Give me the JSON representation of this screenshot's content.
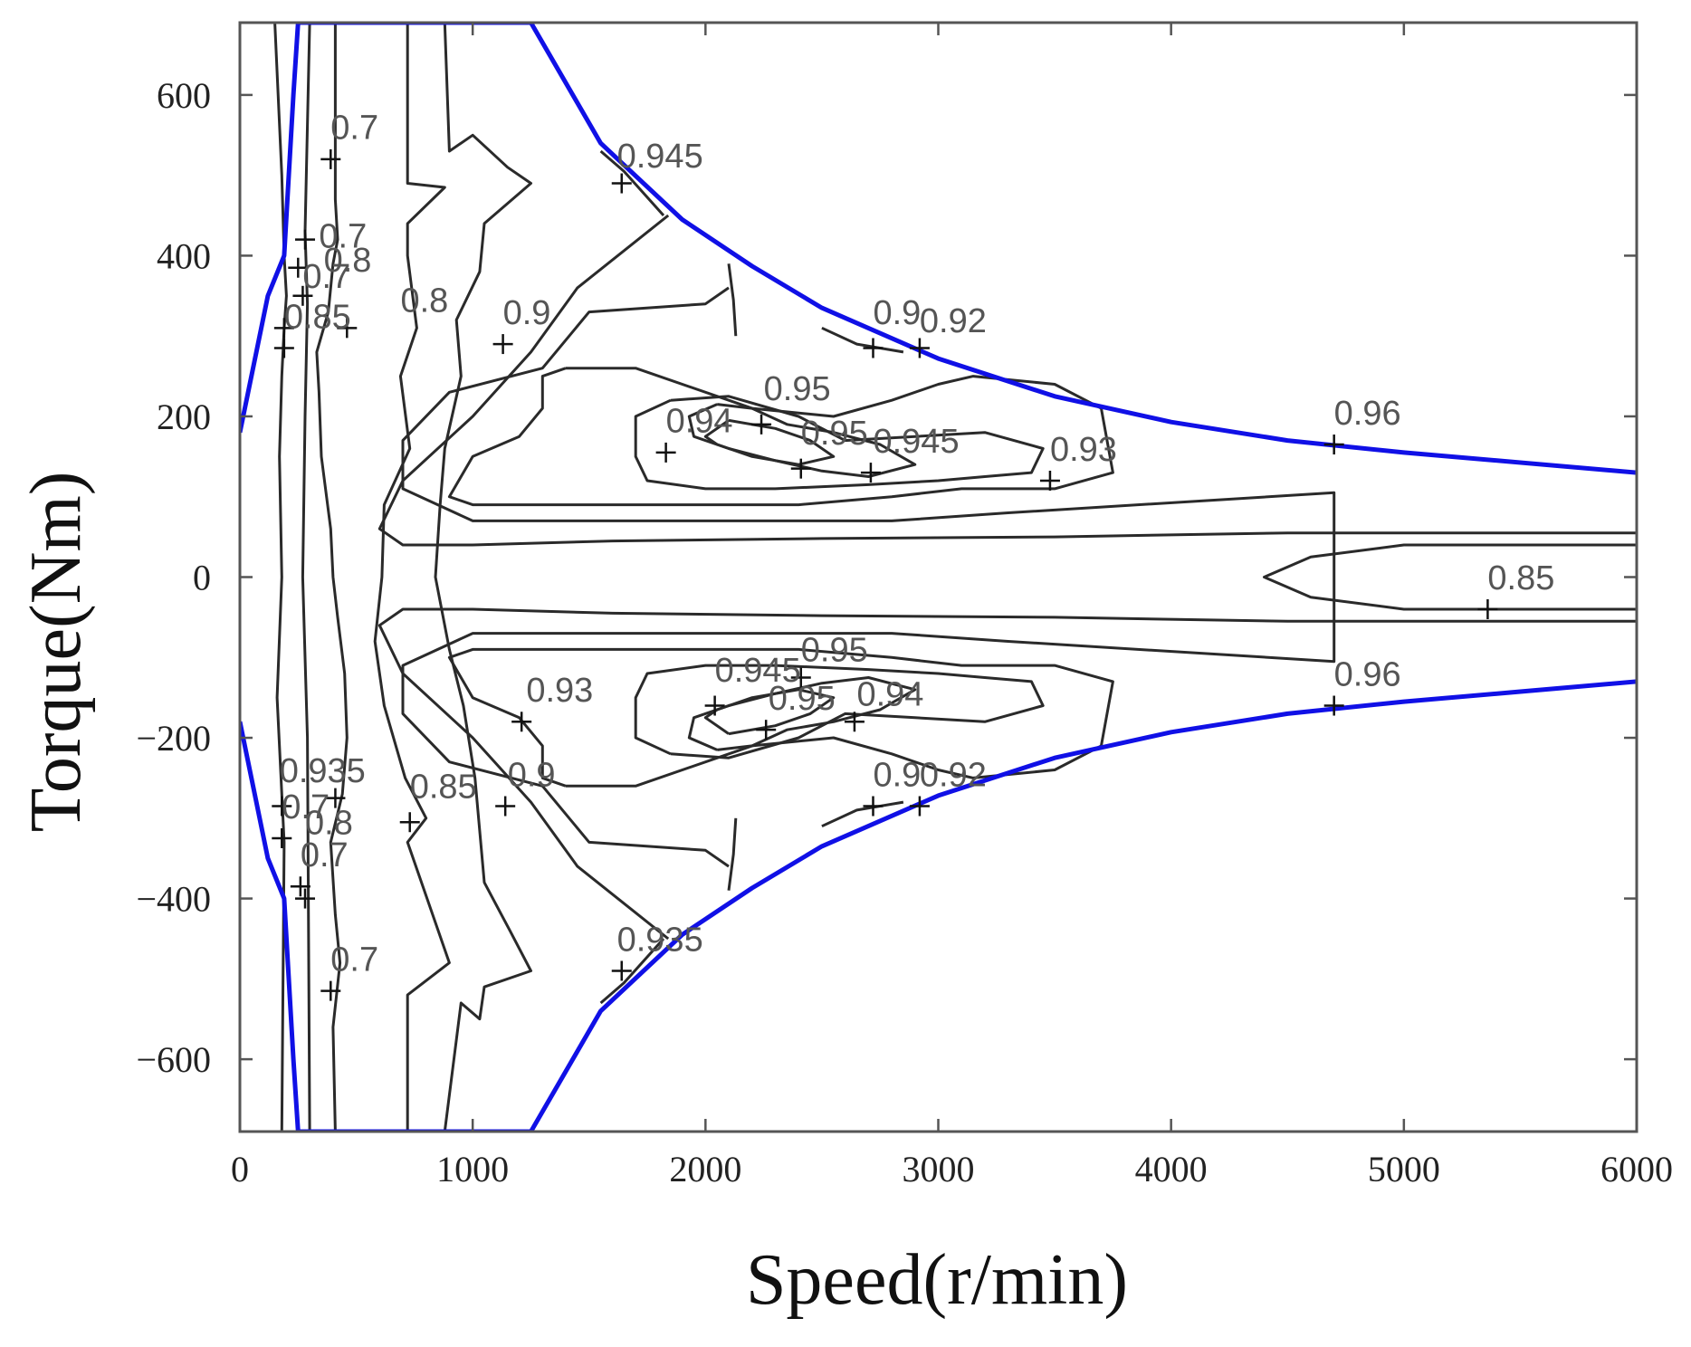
{
  "chart_data": {
    "type": "contour",
    "xlabel": "Speed(r/min)",
    "ylabel": "Torque(Nm)",
    "xlim": [
      0,
      6000
    ],
    "ylim": [
      -690,
      690
    ],
    "x_ticks": [
      0,
      1000,
      2000,
      3000,
      4000,
      5000,
      6000
    ],
    "y_ticks": [
      -600,
      -400,
      -200,
      0,
      200,
      400,
      600
    ],
    "x_tick_labels": [
      "0",
      "1000",
      "2000",
      "3000",
      "4000",
      "5000",
      "6000"
    ],
    "y_tick_labels": [
      "−600",
      "−400",
      "−200",
      "0",
      "200",
      "400",
      "600"
    ],
    "grid": false,
    "colors": {
      "envelope": "#1010e6",
      "contour": "#2a2a2a"
    },
    "envelope": [
      {
        "x": [
          0,
          120,
          190,
          230,
          250,
          1250,
          1550,
          1900,
          2200,
          2500,
          3000,
          3500,
          4000,
          4500,
          5000,
          6000
        ],
        "y": [
          180,
          350,
          400,
          600,
          690,
          690,
          540,
          445,
          387,
          335,
          272,
          225,
          193,
          170,
          155,
          130
        ]
      },
      {
        "x": [
          0,
          120,
          190,
          230,
          250,
          1250,
          1550,
          1900,
          2200,
          2500,
          3000,
          3500,
          4000,
          4500,
          5000,
          6000
        ],
        "y": [
          -180,
          -350,
          -400,
          -600,
          -690,
          -690,
          -540,
          -445,
          -387,
          -335,
          -272,
          -225,
          -193,
          -170,
          -155,
          -130
        ]
      }
    ],
    "contour_lines": [
      {
        "x": [
          150,
          180,
          190,
          200,
          190,
          180,
          170,
          180,
          160,
          190,
          180
        ],
        "y": [
          690,
          500,
          400,
          350,
          310,
          250,
          150,
          0,
          -150,
          -330,
          -690
        ]
      },
      {
        "x": [
          300,
          280,
          290,
          280,
          270,
          290,
          300
        ],
        "y": [
          690,
          430,
          340,
          200,
          0,
          -200,
          -690
        ]
      },
      {
        "x": [
          410,
          410,
          420,
          400,
          380,
          330,
          340,
          350,
          390,
          400,
          420,
          450,
          460,
          440,
          390,
          410,
          430,
          400,
          410
        ],
        "y": [
          690,
          470,
          420,
          390,
          330,
          280,
          230,
          150,
          60,
          0,
          -50,
          -120,
          -200,
          -270,
          -330,
          -420,
          -480,
          -560,
          -690
        ]
      },
      {
        "x": [
          720,
          720,
          880,
          720,
          720,
          760,
          690,
          730,
          620,
          610,
          580,
          620,
          710,
          800,
          720,
          900,
          720,
          720
        ],
        "y": [
          690,
          490,
          485,
          440,
          400,
          310,
          250,
          160,
          90,
          0,
          -80,
          -160,
          -250,
          -300,
          -330,
          -480,
          -520,
          -690
        ]
      },
      {
        "x": [
          880,
          900,
          1000,
          1150,
          1250,
          1050,
          1030,
          930,
          950,
          880,
          860,
          840,
          900,
          960,
          1010,
          1050,
          1160,
          1250,
          1050,
          1030,
          950,
          880
        ],
        "y": [
          690,
          530,
          550,
          510,
          490,
          440,
          380,
          320,
          250,
          160,
          90,
          0,
          -90,
          -160,
          -250,
          -380,
          -440,
          -490,
          -510,
          -550,
          -530,
          -690
        ]
      },
      {
        "x": [
          1550,
          1650,
          1820
        ],
        "y": [
          530,
          505,
          450
        ]
      },
      {
        "x": [
          1550,
          1650,
          1820
        ],
        "y": [
          -530,
          -505,
          -450
        ]
      },
      {
        "x": [
          2100,
          2120,
          2130
        ],
        "y": [
          390,
          345,
          300
        ]
      },
      {
        "x": [
          2100,
          2120,
          2130
        ],
        "y": [
          -390,
          -345,
          -300
        ]
      },
      {
        "x": [
          1840,
          1450,
          1250,
          1000,
          700,
          600,
          700,
          1000,
          1600,
          2500,
          3500,
          4500,
          6000,
          6000,
          4500,
          3500,
          2500,
          1600,
          1000,
          700,
          600,
          700,
          1000,
          1250,
          1450,
          1840
        ],
        "y": [
          450,
          360,
          280,
          200,
          120,
          60,
          40,
          40,
          45,
          48,
          50,
          55,
          55,
          -55,
          -55,
          -50,
          -48,
          -45,
          -40,
          -40,
          -60,
          -120,
          -200,
          -280,
          -360,
          -450
        ]
      },
      {
        "x": [
          2100,
          2000,
          1500,
          1300,
          900,
          700,
          700,
          1000,
          1500,
          2200,
          2800,
          3300,
          4700,
          4700,
          3300,
          2800,
          2200,
          1500,
          1000,
          700,
          700,
          900,
          1300,
          1500,
          2000,
          2100
        ],
        "y": [
          360,
          340,
          330,
          260,
          230,
          170,
          110,
          70,
          70,
          70,
          70,
          80,
          105,
          -105,
          -80,
          -70,
          -70,
          -70,
          -70,
          -110,
          -170,
          -230,
          -260,
          -330,
          -340,
          -360
        ]
      },
      {
        "x": [
          1400,
          1300,
          1300,
          1200,
          1000,
          900,
          1000,
          1500,
          2000,
          2400,
          2800,
          3100,
          3500,
          3750,
          3700,
          3500,
          3150,
          3000,
          2800,
          2550,
          2200,
          1700,
          1400
        ],
        "y": [
          260,
          250,
          210,
          175,
          150,
          100,
          90,
          90,
          90,
          90,
          100,
          110,
          110,
          130,
          210,
          240,
          250,
          240,
          220,
          200,
          210,
          260,
          260
        ]
      },
      {
        "x": [
          1400,
          1300,
          1300,
          1200,
          1000,
          900,
          1000,
          1500,
          2000,
          2400,
          2800,
          3100,
          3500,
          3750,
          3700,
          3500,
          3150,
          3000,
          2800,
          2550,
          2200,
          1700,
          1400
        ],
        "y": [
          -260,
          -250,
          -210,
          -175,
          -150,
          -100,
          -90,
          -90,
          -90,
          -90,
          -100,
          -110,
          -110,
          -130,
          -210,
          -240,
          -250,
          -240,
          -220,
          -200,
          -210,
          -260,
          -260
        ]
      },
      {
        "x": [
          1850,
          1700,
          1700,
          1750,
          2000,
          2300,
          2700,
          3000,
          3200,
          3400,
          3450,
          3200,
          2900,
          2600,
          2400,
          2100,
          1850
        ],
        "y": [
          220,
          200,
          150,
          120,
          110,
          110,
          115,
          120,
          125,
          130,
          160,
          180,
          175,
          170,
          200,
          225,
          220
        ]
      },
      {
        "x": [
          1850,
          1700,
          1700,
          1750,
          2000,
          2300,
          2700,
          3000,
          3200,
          3400,
          3450,
          3200,
          2900,
          2600,
          2400,
          2100,
          1850
        ],
        "y": [
          -220,
          -200,
          -150,
          -120,
          -110,
          -110,
          -115,
          -120,
          -125,
          -130,
          -160,
          -180,
          -175,
          -170,
          -200,
          -225,
          -220
        ]
      },
      {
        "x": [
          2050,
          1930,
          1950,
          2100,
          2300,
          2500,
          2700,
          2900,
          2750,
          2550,
          2350,
          2200,
          2050
        ],
        "y": [
          215,
          200,
          175,
          160,
          145,
          132,
          125,
          140,
          165,
          180,
          190,
          210,
          215
        ]
      },
      {
        "x": [
          2050,
          1930,
          1950,
          2100,
          2300,
          2500,
          2700,
          2900,
          2750,
          2550,
          2350,
          2200,
          2050
        ],
        "y": [
          -215,
          -200,
          -175,
          -160,
          -145,
          -132,
          -125,
          -140,
          -165,
          -180,
          -190,
          -210,
          -215
        ]
      },
      {
        "x": [
          2100,
          2000,
          2050,
          2200,
          2400,
          2550,
          2450,
          2300,
          2100
        ],
        "y": [
          195,
          175,
          165,
          150,
          140,
          150,
          170,
          185,
          195
        ]
      },
      {
        "x": [
          2100,
          2000,
          2050,
          2200,
          2400,
          2550,
          2450,
          2300,
          2100
        ],
        "y": [
          -195,
          -175,
          -165,
          -150,
          -140,
          -150,
          -170,
          -185,
          -195
        ]
      },
      {
        "x": [
          2500,
          2650,
          2850
        ],
        "y": [
          310,
          290,
          280
        ]
      },
      {
        "x": [
          2500,
          2650,
          2850
        ],
        "y": [
          -310,
          -290,
          -280
        ]
      },
      {
        "x": [
          6000,
          5000,
          4600,
          4400,
          4600,
          5000,
          6000
        ],
        "y": [
          40,
          40,
          25,
          0,
          -25,
          -40,
          -40
        ]
      }
    ],
    "contour_labels": [
      {
        "text": "0.7",
        "x": 390,
        "y": 545
      },
      {
        "text": "0.7",
        "x": 340,
        "y": 410
      },
      {
        "text": "0.7",
        "x": 270,
        "y": 360
      },
      {
        "text": "0.8",
        "x": 360,
        "y": 380
      },
      {
        "text": "0.8",
        "x": 690,
        "y": 330
      },
      {
        "text": "0.85",
        "x": 190,
        "y": 310
      },
      {
        "text": "0.9",
        "x": 1130,
        "y": 315
      },
      {
        "text": "0.945",
        "x": 1620,
        "y": 510
      },
      {
        "text": "0.95",
        "x": 2250,
        "y": 220
      },
      {
        "text": "0.94",
        "x": 1830,
        "y": 180
      },
      {
        "text": "0.95",
        "x": 2410,
        "y": 165
      },
      {
        "text": "0.945",
        "x": 2720,
        "y": 155
      },
      {
        "text": "0.93",
        "x": 3480,
        "y": 145
      },
      {
        "text": "0.9",
        "x": 2720,
        "y": 315
      },
      {
        "text": "0.92",
        "x": 2920,
        "y": 305
      },
      {
        "text": "0.96",
        "x": 4700,
        "y": 190
      },
      {
        "text": "0.85",
        "x": 5360,
        "y": -15
      },
      {
        "text": "0.96",
        "x": 4700,
        "y": -135
      },
      {
        "text": "0.93",
        "x": 1230,
        "y": -155
      },
      {
        "text": "0.945",
        "x": 2040,
        "y": -130
      },
      {
        "text": "0.95",
        "x": 2410,
        "y": -105
      },
      {
        "text": "0.95",
        "x": 2270,
        "y": -165
      },
      {
        "text": "0.94",
        "x": 2650,
        "y": -160
      },
      {
        "text": "0.935",
        "x": 170,
        "y": -255
      },
      {
        "text": "0.85",
        "x": 730,
        "y": -275
      },
      {
        "text": "0.9",
        "x": 1150,
        "y": -260
      },
      {
        "text": "0.7",
        "x": 180,
        "y": -300
      },
      {
        "text": "0.8",
        "x": 280,
        "y": -320
      },
      {
        "text": "0.7",
        "x": 260,
        "y": -360
      },
      {
        "text": "0.7",
        "x": 390,
        "y": -490
      },
      {
        "text": "0.935",
        "x": 1620,
        "y": -465
      },
      {
        "text": "0.9",
        "x": 2720,
        "y": -260
      },
      {
        "text": "0.92",
        "x": 2920,
        "y": -260
      }
    ],
    "crosses": [
      {
        "x": 390,
        "y": 520
      },
      {
        "x": 280,
        "y": 420
      },
      {
        "x": 250,
        "y": 385
      },
      {
        "x": 270,
        "y": 350
      },
      {
        "x": 190,
        "y": 310
      },
      {
        "x": 190,
        "y": 285
      },
      {
        "x": 460,
        "y": 310
      },
      {
        "x": 1130,
        "y": 290
      },
      {
        "x": 1640,
        "y": 490
      },
      {
        "x": 2240,
        "y": 190
      },
      {
        "x": 1830,
        "y": 155
      },
      {
        "x": 2410,
        "y": 135
      },
      {
        "x": 2710,
        "y": 130
      },
      {
        "x": 3480,
        "y": 120
      },
      {
        "x": 2720,
        "y": 285
      },
      {
        "x": 2920,
        "y": 285
      },
      {
        "x": 4700,
        "y": 165
      },
      {
        "x": 5360,
        "y": -40
      },
      {
        "x": 4700,
        "y": -160
      },
      {
        "x": 1210,
        "y": -180
      },
      {
        "x": 2040,
        "y": -160
      },
      {
        "x": 2410,
        "y": -125
      },
      {
        "x": 2260,
        "y": -190
      },
      {
        "x": 2640,
        "y": -180
      },
      {
        "x": 180,
        "y": -285
      },
      {
        "x": 180,
        "y": -325
      },
      {
        "x": 410,
        "y": -275
      },
      {
        "x": 730,
        "y": -305
      },
      {
        "x": 1140,
        "y": -285
      },
      {
        "x": 260,
        "y": -385
      },
      {
        "x": 280,
        "y": -400
      },
      {
        "x": 390,
        "y": -515
      },
      {
        "x": 1640,
        "y": -490
      },
      {
        "x": 2720,
        "y": -285
      },
      {
        "x": 2920,
        "y": -285
      }
    ]
  }
}
